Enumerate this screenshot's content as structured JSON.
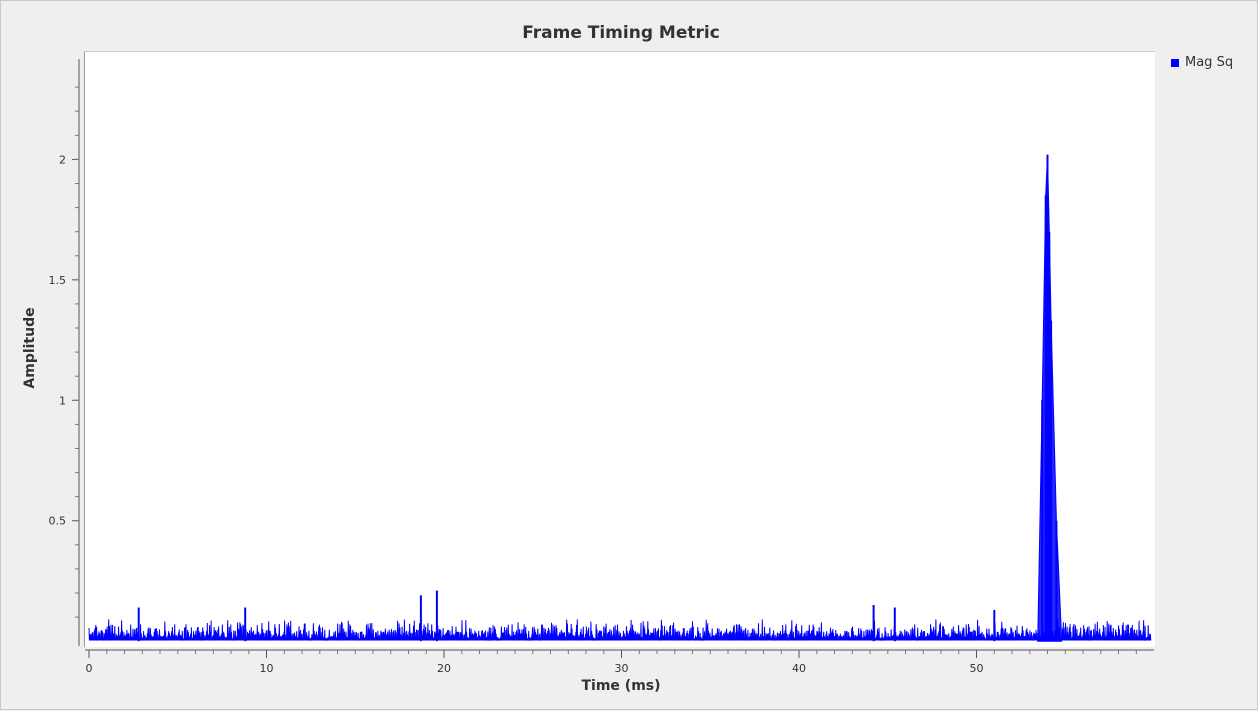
{
  "chart_data": {
    "type": "line",
    "title": "Frame Timing Metric",
    "xlabel": "Time (ms)",
    "ylabel": "Amplitude",
    "xlim": [
      0,
      60
    ],
    "ylim": [
      -0.02,
      2.45
    ],
    "xticks": [
      0,
      10,
      20,
      30,
      40,
      50
    ],
    "yticks": [
      0.5,
      1,
      1.5,
      2
    ],
    "xtick_labels": [
      "0",
      "10",
      "20",
      "30",
      "40",
      "50"
    ],
    "ytick_labels": [
      "0.5",
      "1",
      "1.5",
      "2"
    ],
    "grid": false,
    "legend_position": "top-right",
    "series": [
      {
        "name": "Mag Sq",
        "color": "#0000ff",
        "noise_floor": 0.01,
        "typical_noise_peak": 0.07,
        "peaks": [
          {
            "x": 2.8,
            "y": 0.14
          },
          {
            "x": 8.8,
            "y": 0.14
          },
          {
            "x": 18.7,
            "y": 0.19
          },
          {
            "x": 19.6,
            "y": 0.21
          },
          {
            "x": 44.2,
            "y": 0.15
          },
          {
            "x": 45.4,
            "y": 0.14
          },
          {
            "x": 51.0,
            "y": 0.13
          },
          {
            "x": 53.7,
            "y": 1.0
          },
          {
            "x": 53.9,
            "y": 1.85
          },
          {
            "x": 54.0,
            "y": 2.02
          },
          {
            "x": 54.1,
            "y": 1.7
          },
          {
            "x": 54.2,
            "y": 1.33
          },
          {
            "x": 54.5,
            "y": 0.5
          }
        ]
      }
    ]
  }
}
